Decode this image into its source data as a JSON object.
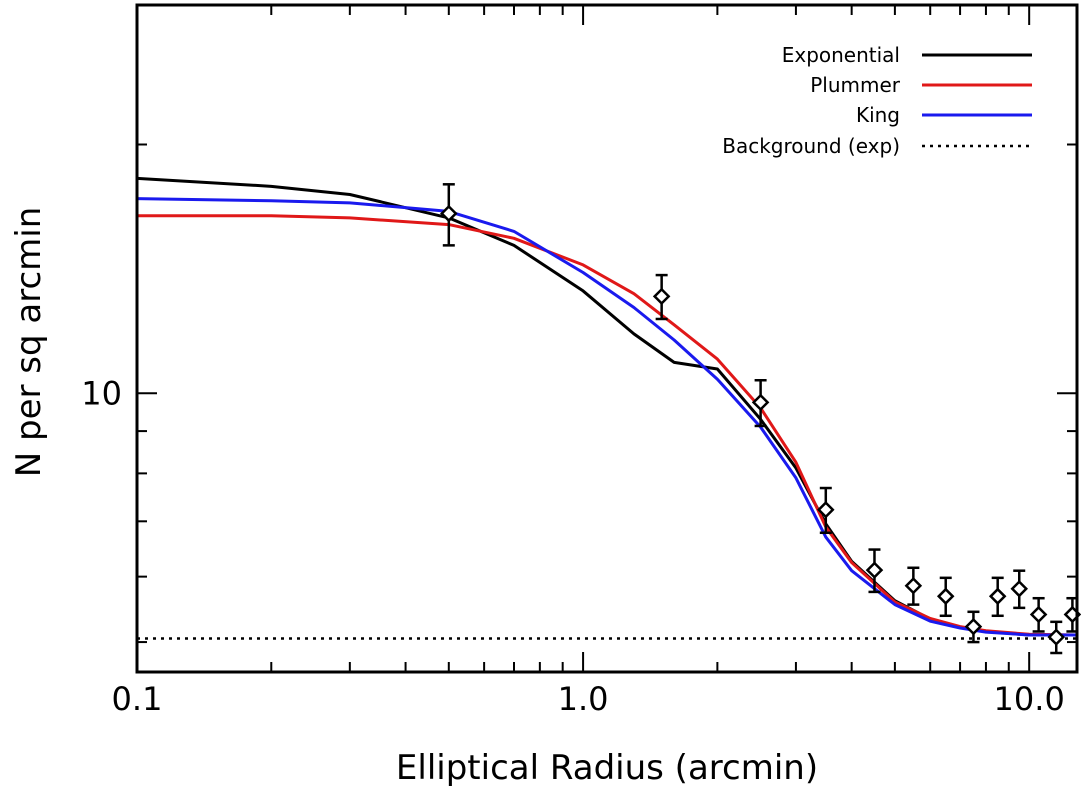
{
  "chart_data": {
    "type": "line",
    "title": "",
    "xlabel": "Elliptical Radius (arcmin)",
    "ylabel": "N per sq arcmin",
    "xscale": "log",
    "yscale": "log",
    "xlim": [
      0.1,
      12.8
    ],
    "ylim": [
      4.6,
      29.5
    ],
    "grid": false,
    "legend_position": "top-right",
    "x_tick_labels": [
      {
        "value": 0.1,
        "label": "0.1"
      },
      {
        "value": 1.0,
        "label": "1.0"
      },
      {
        "value": 10.0,
        "label": "10.0"
      }
    ],
    "y_tick_labels": [
      {
        "value": 10,
        "label": "10"
      }
    ],
    "series": [
      {
        "name": "Exponential",
        "color": "#000000",
        "style": "solid",
        "x": [
          0.1,
          0.2,
          0.3,
          0.5,
          0.7,
          1.0,
          1.3,
          1.6,
          2.0,
          2.5,
          3.0,
          3.5,
          4.0,
          5.0,
          6.0,
          7.0,
          8.0,
          10.0,
          12.8
        ],
        "y": [
          18.2,
          17.8,
          17.4,
          16.3,
          15.1,
          13.3,
          11.8,
          10.9,
          10.7,
          9.3,
          8.12,
          6.95,
          6.26,
          5.61,
          5.33,
          5.21,
          5.15,
          5.1,
          5.1
        ]
      },
      {
        "name": "Plummer",
        "color": "#e01818",
        "style": "solid",
        "x": [
          0.1,
          0.2,
          0.3,
          0.5,
          0.7,
          1.0,
          1.3,
          1.6,
          2.0,
          2.5,
          3.0,
          3.5,
          4.0,
          5.0,
          6.0,
          7.0,
          8.0,
          10.0,
          12.8
        ],
        "y": [
          16.4,
          16.4,
          16.3,
          16.0,
          15.4,
          14.3,
          13.2,
          12.1,
          11.0,
          9.6,
          8.25,
          6.89,
          6.24,
          5.59,
          5.34,
          5.22,
          5.16,
          5.11,
          5.1
        ]
      },
      {
        "name": "King",
        "color": "#1a1aee",
        "style": "solid",
        "x": [
          0.1,
          0.2,
          0.3,
          0.5,
          0.7,
          1.0,
          1.3,
          1.6,
          2.0,
          2.5,
          3.0,
          3.5,
          4.0,
          5.0,
          6.0,
          7.0,
          8.0,
          10.0,
          12.8
        ],
        "y": [
          17.2,
          17.1,
          17.0,
          16.6,
          15.7,
          14.0,
          12.7,
          11.6,
          10.4,
          9.1,
          7.9,
          6.7,
          6.1,
          5.55,
          5.3,
          5.2,
          5.14,
          5.1,
          5.1
        ]
      },
      {
        "name": "Background (exp)",
        "color": "#000000",
        "style": "dotted",
        "x": [
          0.1,
          12.8
        ],
        "y": [
          5.05,
          5.05
        ]
      }
    ],
    "points": {
      "marker": "diamond",
      "color": "#000000",
      "x": [
        0.5,
        1.5,
        2.5,
        3.5,
        4.5,
        5.5,
        6.5,
        7.5,
        8.5,
        9.5,
        10.5,
        11.5,
        12.5
      ],
      "y": [
        16.5,
        13.1,
        9.75,
        7.23,
        6.11,
        5.85,
        5.68,
        5.22,
        5.68,
        5.8,
        5.4,
        5.07,
        5.4
      ],
      "err": [
        1.4,
        0.8,
        0.62,
        0.45,
        0.36,
        0.3,
        0.3,
        0.22,
        0.3,
        0.3,
        0.25,
        0.22,
        0.25
      ]
    }
  }
}
